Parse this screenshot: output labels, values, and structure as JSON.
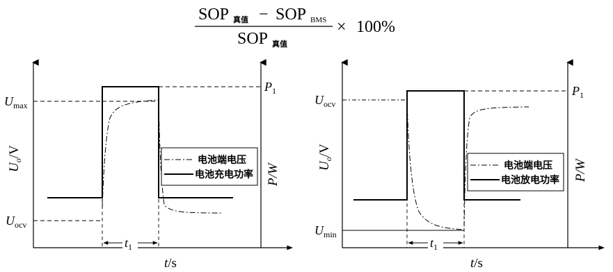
{
  "formula": {
    "sop": "SOP",
    "true_sub": "真值",
    "bms_sub": "BMS",
    "minus": "−",
    "times": "×",
    "percent": "100%"
  },
  "left_panel": {
    "y_axis_label_U": "U",
    "y_axis_label_sub": "o",
    "y_axis_label_unit": "/V",
    "right_axis_label": "P/W",
    "x_axis_label_t": "t",
    "x_axis_label_unit": "/s",
    "u_max_U": "U",
    "u_max_sub": "max",
    "u_ocv_U": "U",
    "u_ocv_sub": "ocv",
    "p1_P": "P",
    "p1_sub": "1",
    "t1_t": "t",
    "t1_sub": "1",
    "legend_voltage": "电池端电压",
    "legend_power": "电池充电功率"
  },
  "right_panel": {
    "y_axis_label_U": "U",
    "y_axis_label_sub": "o",
    "y_axis_label_unit": "/V",
    "right_axis_label": "P/W",
    "x_axis_label_t": "t",
    "x_axis_label_unit": "/s",
    "u_ocv_U": "U",
    "u_ocv_sub": "ocv",
    "u_min_U": "U",
    "u_min_sub": "min",
    "p1_P": "P",
    "p1_sub": "1",
    "t1_t": "t",
    "t1_sub": "1",
    "legend_voltage": "电池端电压",
    "legend_power": "电池放电功率"
  }
}
